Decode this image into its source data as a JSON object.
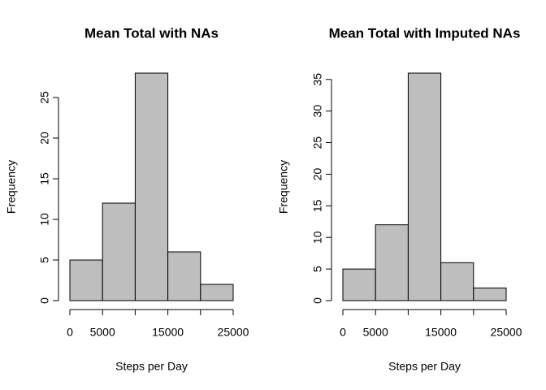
{
  "chart_data": [
    {
      "type": "histogram",
      "title": "Mean Total with NAs",
      "xlabel": "Steps per Day",
      "ylabel": "Frequency",
      "bins": [
        0,
        5000,
        10000,
        15000,
        20000,
        25000
      ],
      "values": [
        5,
        12,
        28,
        6,
        2
      ],
      "color": "#bebebe",
      "xlim": [
        0,
        25000
      ],
      "xticks": [
        0,
        5000,
        {
          "value": 10000,
          "label": null
        },
        15000,
        {
          "value": 20000,
          "label": null
        },
        25000
      ],
      "ylim": [
        0,
        28
      ],
      "yticks": [
        0,
        5,
        10,
        15,
        20,
        25
      ]
    },
    {
      "type": "histogram",
      "title": "Mean Total with Imputed NAs",
      "xlabel": "Steps per Day",
      "ylabel": "Frequency",
      "bins": [
        0,
        5000,
        10000,
        15000,
        20000,
        25000
      ],
      "values": [
        5,
        12,
        36,
        6,
        2
      ],
      "color": "#bebebe",
      "xlim": [
        0,
        25000
      ],
      "xticks": [
        0,
        5000,
        {
          "value": 10000,
          "label": null
        },
        15000,
        {
          "value": 20000,
          "label": null
        },
        25000
      ],
      "ylim": [
        0,
        36
      ],
      "yticks": [
        0,
        5,
        10,
        15,
        20,
        25,
        30,
        35
      ]
    }
  ]
}
